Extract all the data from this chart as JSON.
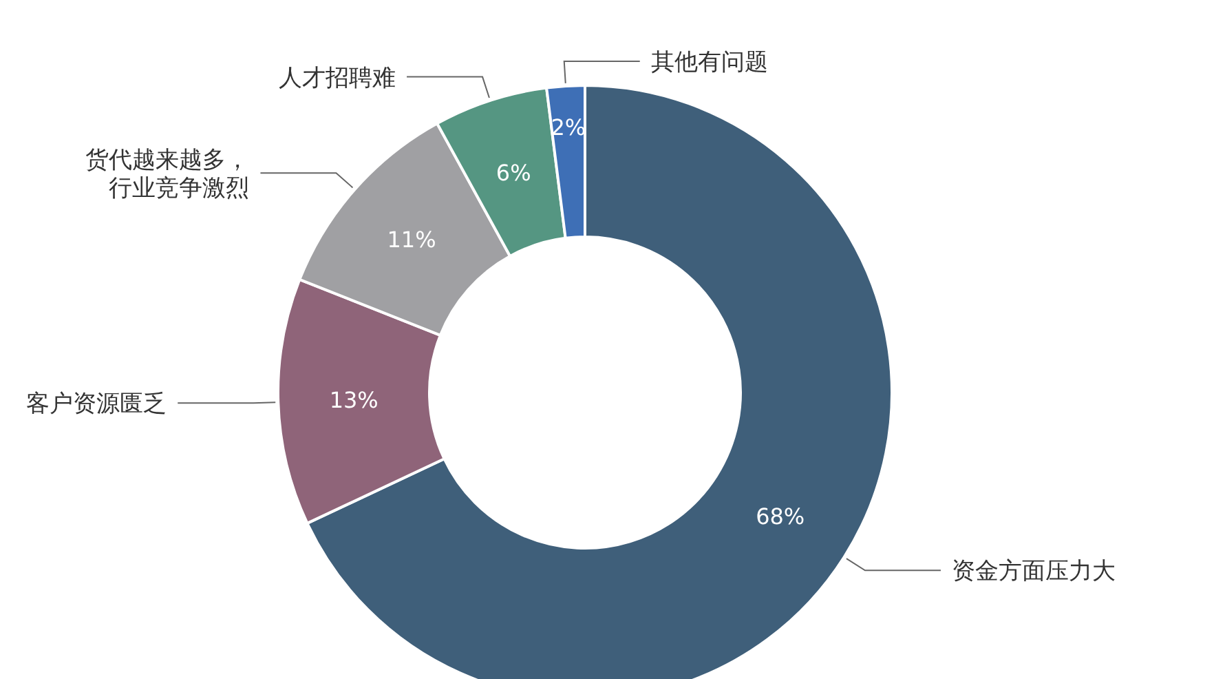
{
  "chart_data": {
    "type": "donut",
    "categories": [
      "资金方面压力大",
      "客户资源匮乏",
      "货代越来越多，行业竞争激烈",
      "人才招聘难",
      "其他有问题"
    ],
    "values": [
      68,
      13,
      11,
      6,
      2
    ],
    "value_labels": [
      "68%",
      "13%",
      "11%",
      "6%",
      "2%"
    ],
    "colors": [
      "#3f5f7a",
      "#8f6479",
      "#a0a0a3",
      "#559682",
      "#3e6fb6"
    ],
    "legend": false
  }
}
